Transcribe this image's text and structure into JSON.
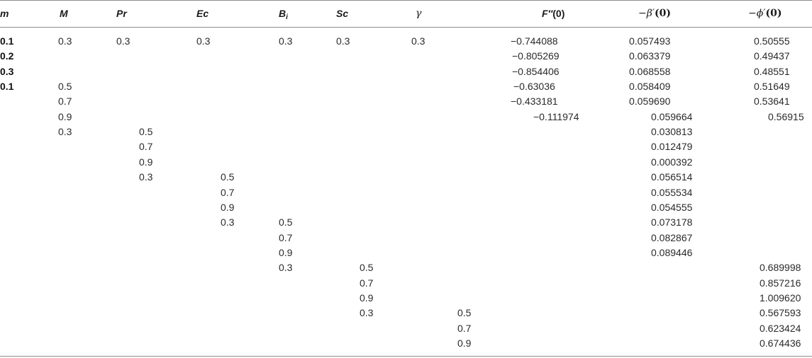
{
  "table": {
    "headers": {
      "m": "m",
      "M": "M",
      "Pr": "Pr",
      "Ec": "Ec",
      "Bi_base": "B",
      "Bi_sub": "i",
      "Sc": "Sc",
      "gamma": "γ",
      "f_main": "F′′",
      "f_arg": "(0)",
      "beta_main": "−β′",
      "beta_arg": "(0)",
      "phi_main": "−ϕ′",
      "phi_arg": "(0)"
    },
    "rows": [
      {
        "m": "0.1",
        "M": "0.3",
        "Pr": "0.3",
        "Ec": "0.3",
        "Bi": "0.3",
        "Sc": "0.3",
        "gamma": "0.3",
        "f": "−0.744088",
        "beta": "0.057493",
        "phi": "0.50555"
      },
      {
        "m": "0.2",
        "M": "",
        "Pr": "",
        "Ec": "",
        "Bi": "",
        "Sc": "",
        "gamma": "",
        "f": "−0.805269",
        "beta": "0.063379",
        "phi": "0.49437"
      },
      {
        "m": "0.3",
        "M": "",
        "Pr": "",
        "Ec": "",
        "Bi": "",
        "Sc": "",
        "gamma": "",
        "f": "−0.854406",
        "beta": "0.068558",
        "phi": "0.48551"
      },
      {
        "m": "0.1",
        "M": "0.5",
        "Pr": "",
        "Ec": "",
        "Bi": "",
        "Sc": "",
        "gamma": "",
        "f": "−0.63036",
        "beta": "0.058409",
        "phi": "0.51649"
      },
      {
        "m": "",
        "M": "0.7",
        "Pr": "",
        "Ec": "",
        "Bi": "",
        "Sc": "",
        "gamma": "",
        "f": "−0.433181",
        "beta": "0.059690",
        "phi": "0.53641"
      },
      {
        "m": "",
        "M": "0.9",
        "Pr": "",
        "Ec": "",
        "Bi": "",
        "Sc": "",
        "gamma": "",
        "f": "−0.111974",
        "beta": "0.059664",
        "phi": "0.56915"
      },
      {
        "m": "",
        "M": "0.3",
        "Pr": "0.5",
        "Ec": "",
        "Bi": "",
        "Sc": "",
        "gamma": "",
        "f": "",
        "beta": "0.030813",
        "phi": ""
      },
      {
        "m": "",
        "M": "",
        "Pr": "0.7",
        "Ec": "",
        "Bi": "",
        "Sc": "",
        "gamma": "",
        "f": "",
        "beta": "0.012479",
        "phi": ""
      },
      {
        "m": "",
        "M": "",
        "Pr": "0.9",
        "Ec": "",
        "Bi": "",
        "Sc": "",
        "gamma": "",
        "f": "",
        "beta": "0.000392",
        "phi": ""
      },
      {
        "m": "",
        "M": "",
        "Pr": "0.3",
        "Ec": "0.5",
        "Bi": "",
        "Sc": "",
        "gamma": "",
        "f": "",
        "beta": "0.056514",
        "phi": ""
      },
      {
        "m": "",
        "M": "",
        "Pr": "",
        "Ec": "0.7",
        "Bi": "",
        "Sc": "",
        "gamma": "",
        "f": "",
        "beta": "0.055534",
        "phi": ""
      },
      {
        "m": "",
        "M": "",
        "Pr": "",
        "Ec": "0.9",
        "Bi": "",
        "Sc": "",
        "gamma": "",
        "f": "",
        "beta": "0.054555",
        "phi": ""
      },
      {
        "m": "",
        "M": "",
        "Pr": "",
        "Ec": "0.3",
        "Bi": "0.5",
        "Sc": "",
        "gamma": "",
        "f": "",
        "beta": "0.073178",
        "phi": ""
      },
      {
        "m": "",
        "M": "",
        "Pr": "",
        "Ec": "",
        "Bi": "0.7",
        "Sc": "",
        "gamma": "",
        "f": "",
        "beta": "0.082867",
        "phi": ""
      },
      {
        "m": "",
        "M": "",
        "Pr": "",
        "Ec": "",
        "Bi": "0.9",
        "Sc": "",
        "gamma": "",
        "f": "",
        "beta": "0.089446",
        "phi": ""
      },
      {
        "m": "",
        "M": "",
        "Pr": "",
        "Ec": "",
        "Bi": "0.3",
        "Sc": "0.5",
        "gamma": "",
        "f": "",
        "beta": "",
        "phi": "0.689998"
      },
      {
        "m": "",
        "M": "",
        "Pr": "",
        "Ec": "",
        "Bi": "",
        "Sc": "0.7",
        "gamma": "",
        "f": "",
        "beta": "",
        "phi": "0.857216"
      },
      {
        "m": "",
        "M": "",
        "Pr": "",
        "Ec": "",
        "Bi": "",
        "Sc": "0.9",
        "gamma": "",
        "f": "",
        "beta": "",
        "phi": "1.009620"
      },
      {
        "m": "",
        "M": "",
        "Pr": "",
        "Ec": "",
        "Bi": "",
        "Sc": "0.3",
        "gamma": "0.5",
        "f": "",
        "beta": "",
        "phi": "0.567593"
      },
      {
        "m": "",
        "M": "",
        "Pr": "",
        "Ec": "",
        "Bi": "",
        "Sc": "",
        "gamma": "0.7",
        "f": "",
        "beta": "",
        "phi": "0.623424"
      },
      {
        "m": "",
        "M": "",
        "Pr": "",
        "Ec": "",
        "Bi": "",
        "Sc": "",
        "gamma": "0.9",
        "f": "",
        "beta": "",
        "phi": "0.674436"
      }
    ]
  }
}
